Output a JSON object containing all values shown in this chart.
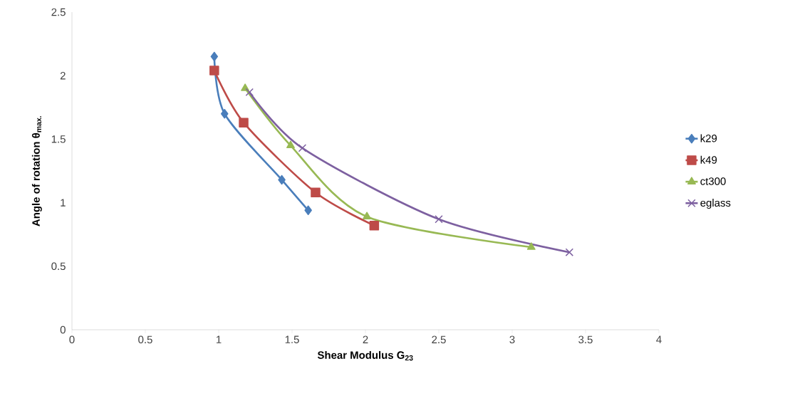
{
  "chart_data": {
    "type": "line",
    "xlabel": "Shear Modulus G$_{23}$",
    "ylabel": "Angle of rotation θ$_{max.}$",
    "xlim": [
      0,
      4
    ],
    "xticks": [
      0,
      0.5,
      1,
      1.5,
      2,
      2.5,
      3,
      3.5,
      4
    ],
    "ylim": [
      0,
      2.5
    ],
    "yticks": [
      0,
      0.5,
      1,
      1.5,
      2,
      2.5
    ],
    "grid": false,
    "legend": "right",
    "line_style": "solid",
    "series": [
      {
        "name": "k29",
        "color": "#4a7ebb",
        "marker": "diamond",
        "x": [
          0.97,
          1.04,
          1.43,
          1.61
        ],
        "values": [
          2.15,
          1.7,
          1.18,
          0.94
        ]
      },
      {
        "name": "k49",
        "color": "#be4b48",
        "marker": "square",
        "x": [
          0.97,
          1.17,
          1.66,
          2.06
        ],
        "values": [
          2.04,
          1.63,
          1.08,
          0.82
        ]
      },
      {
        "name": "ct300",
        "color": "#98b954",
        "marker": "triangle",
        "x": [
          1.18,
          1.49,
          2.01,
          3.13
        ],
        "values": [
          1.9,
          1.45,
          0.89,
          0.65
        ]
      },
      {
        "name": "eglass",
        "color": "#7d60a0",
        "marker": "cross",
        "x": [
          1.21,
          1.57,
          2.5,
          3.39
        ],
        "values": [
          1.87,
          1.43,
          0.87,
          0.61
        ]
      }
    ]
  }
}
